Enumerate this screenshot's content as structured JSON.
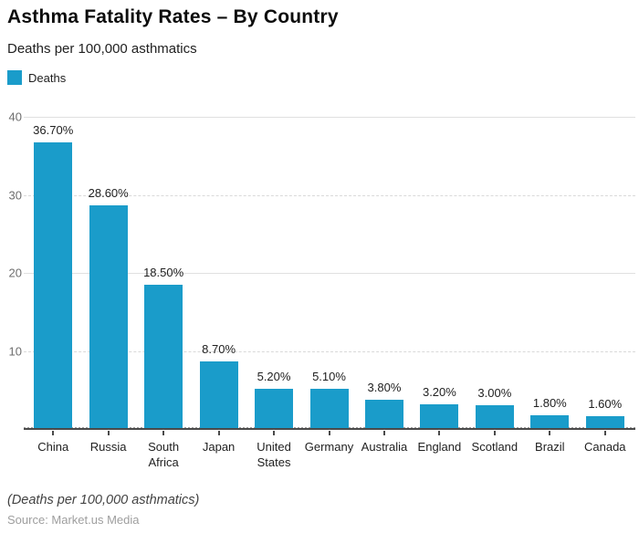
{
  "header": {
    "title": "Asthma Fatality Rates – By Country",
    "subtitle": "Deaths per 100,000 asthmatics"
  },
  "legend": {
    "items": [
      {
        "label": "Deaths",
        "color": "#1a9cca"
      }
    ]
  },
  "footer": {
    "footnote": "(Deaths per 100,000 asthmatics)",
    "source": "Source: Market.us Media"
  },
  "colors": {
    "bar": "#1a9cca",
    "gridline": "#e0e0e0",
    "axis": "#4a4a4a",
    "tick_label": "#6e6e6e",
    "text": "#212121"
  },
  "chart_data": {
    "type": "bar",
    "title": "Asthma Fatality Rates – By Country",
    "subtitle": "Deaths per 100,000 asthmatics",
    "xlabel": "",
    "ylabel": "Deaths per 100,000 asthmatics",
    "series_name": "Deaths",
    "categories": [
      "China",
      "Russia",
      "South Africa",
      "Japan",
      "United States",
      "Germany",
      "Australia",
      "England",
      "Scotland",
      "Brazil",
      "Canada"
    ],
    "values": [
      36.7,
      28.6,
      18.5,
      8.7,
      5.2,
      5.1,
      3.8,
      3.2,
      3.0,
      1.8,
      1.6
    ],
    "value_labels": [
      "36.70%",
      "28.60%",
      "18.50%",
      "8.70%",
      "5.20%",
      "5.10%",
      "3.80%",
      "3.20%",
      "3.00%",
      "1.80%",
      "1.60%"
    ],
    "ylim": [
      0,
      40
    ],
    "yticks": [
      10,
      20,
      30,
      40
    ],
    "minor_dashed_yticks": [
      10,
      30
    ],
    "grid": true,
    "legend_position": "top-left"
  }
}
